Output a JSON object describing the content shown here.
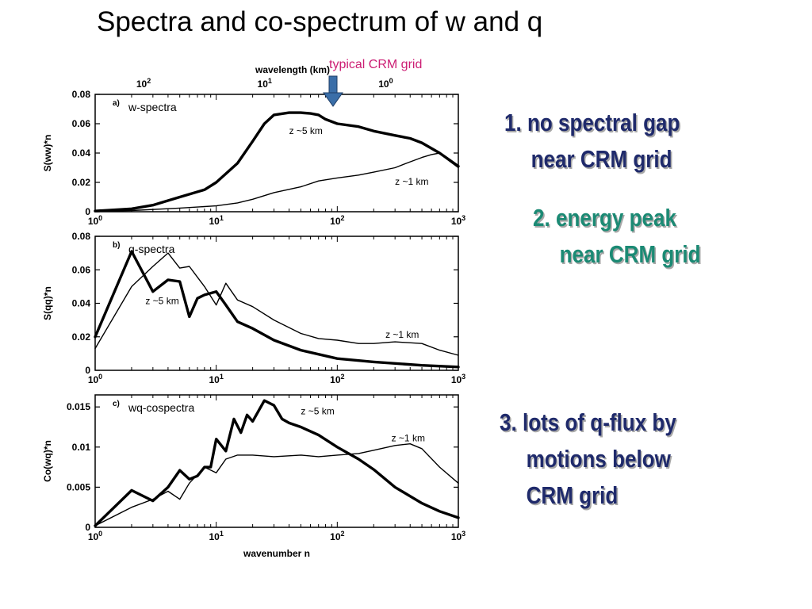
{
  "slide": {
    "title": "Spectra and co-spectrum of w and q",
    "points": [
      {
        "number": "1.",
        "lines": [
          "no spectral gap",
          "near CRM grid"
        ],
        "color": "#1f2a6b"
      },
      {
        "number": "2.",
        "lines": [
          "energy peak",
          "near CRM grid"
        ],
        "color": "#1b8a74"
      },
      {
        "number": "3.",
        "lines": [
          "lots of q-flux by",
          "motions below",
          "CRM grid"
        ],
        "color": "#1f2a6b"
      }
    ]
  },
  "figure": {
    "top_axis": {
      "label": "wavelength (km)",
      "ticks": [
        {
          "base": "10",
          "exp": "2"
        },
        {
          "base": "10",
          "exp": "1"
        },
        {
          "base": "10",
          "exp": "0"
        }
      ]
    },
    "annotation": {
      "text": "typical CRM grid",
      "color": "#cc1e74",
      "arrow_color": "#3a6ea8"
    },
    "x_label": "wavenumber n",
    "x_ticks": [
      {
        "base": "10",
        "exp": "0"
      },
      {
        "base": "10",
        "exp": "1"
      },
      {
        "base": "10",
        "exp": "2"
      },
      {
        "base": "10",
        "exp": "3"
      }
    ]
  },
  "chart_data": [
    {
      "type": "line",
      "panel": "a)",
      "title": "w-spectra",
      "ylabel": "S(ww)*n",
      "xlabel": "",
      "x_scale": "log",
      "xlim": [
        1,
        1000
      ],
      "ylim": [
        0,
        0.08
      ],
      "y_ticks": [
        "0",
        "0.02",
        "0.04",
        "0.06",
        "0.08"
      ],
      "series": [
        {
          "name": "z ~5 km",
          "style": "thick",
          "x": [
            1,
            2,
            3,
            5,
            8,
            10,
            15,
            20,
            25,
            30,
            40,
            50,
            60,
            70,
            80,
            100,
            150,
            200,
            300,
            400,
            500,
            700,
            1000
          ],
          "y": [
            0.0005,
            0.002,
            0.0045,
            0.01,
            0.015,
            0.02,
            0.033,
            0.048,
            0.06,
            0.066,
            0.0675,
            0.0675,
            0.067,
            0.066,
            0.063,
            0.06,
            0.058,
            0.055,
            0.052,
            0.05,
            0.047,
            0.04,
            0.031
          ]
        },
        {
          "name": "z ~1 km",
          "style": "thin",
          "x": [
            1,
            2,
            5,
            10,
            15,
            20,
            30,
            50,
            70,
            100,
            150,
            200,
            300,
            400,
            500,
            600,
            700,
            800,
            1000
          ],
          "y": [
            0.0002,
            0.0008,
            0.0025,
            0.004,
            0.006,
            0.0085,
            0.013,
            0.017,
            0.021,
            0.023,
            0.025,
            0.027,
            0.03,
            0.034,
            0.037,
            0.039,
            0.04,
            0.036,
            0.03
          ]
        }
      ],
      "labels": [
        {
          "text": "z ~5 km",
          "x": 40,
          "y": 0.053
        },
        {
          "text": "z ~1 km",
          "x": 300,
          "y": 0.0185
        }
      ]
    },
    {
      "type": "line",
      "panel": "b)",
      "title": "q-spectra",
      "ylabel": "S(qq)*n",
      "xlabel": "",
      "x_scale": "log",
      "xlim": [
        1,
        1000
      ],
      "ylim": [
        0,
        0.08
      ],
      "y_ticks": [
        "0",
        "0.02",
        "0.04",
        "0.06",
        "0.08"
      ],
      "series": [
        {
          "name": "z ~5 km",
          "style": "thick",
          "x": [
            1,
            2,
            3,
            4,
            5,
            6,
            7,
            8,
            10,
            12,
            15,
            20,
            30,
            50,
            100,
            200,
            500,
            1000
          ],
          "y": [
            0.02,
            0.071,
            0.047,
            0.054,
            0.053,
            0.032,
            0.043,
            0.045,
            0.047,
            0.039,
            0.029,
            0.025,
            0.018,
            0.012,
            0.007,
            0.005,
            0.003,
            0.002
          ]
        },
        {
          "name": "z ~1 km",
          "style": "thin",
          "x": [
            1,
            2,
            3,
            4,
            5,
            6,
            8,
            10,
            12,
            15,
            20,
            30,
            50,
            70,
            100,
            150,
            200,
            300,
            500,
            700,
            1000
          ],
          "y": [
            0.013,
            0.05,
            0.062,
            0.07,
            0.061,
            0.062,
            0.05,
            0.039,
            0.052,
            0.042,
            0.038,
            0.03,
            0.022,
            0.019,
            0.018,
            0.016,
            0.016,
            0.017,
            0.016,
            0.012,
            0.009
          ]
        }
      ],
      "labels": [
        {
          "text": "z ~5 km",
          "x": 2.6,
          "y": 0.0395
        },
        {
          "text": "z ~1 km",
          "x": 250,
          "y": 0.0195
        }
      ]
    },
    {
      "type": "line",
      "panel": "c)",
      "title": "wq-cospectra",
      "ylabel": "Co(wq)*n",
      "xlabel": "wavenumber n",
      "x_scale": "log",
      "xlim": [
        1,
        1000
      ],
      "ylim": [
        0,
        0.0165
      ],
      "y_ticks": [
        "0",
        "0.005",
        "0.01",
        "0.015"
      ],
      "series": [
        {
          "name": "z ~5 km",
          "style": "thick",
          "x": [
            1,
            2,
            3,
            4,
            5,
            6,
            7,
            8,
            9,
            10,
            12,
            14,
            16,
            18,
            20,
            25,
            30,
            35,
            40,
            50,
            70,
            100,
            150,
            200,
            300,
            500,
            700,
            1000
          ],
          "y": [
            0.0002,
            0.0046,
            0.0033,
            0.005,
            0.0071,
            0.006,
            0.0064,
            0.0075,
            0.0075,
            0.011,
            0.0095,
            0.0135,
            0.0118,
            0.014,
            0.0132,
            0.0158,
            0.0152,
            0.0135,
            0.013,
            0.0125,
            0.0115,
            0.01,
            0.0085,
            0.0072,
            0.005,
            0.003,
            0.002,
            0.0012
          ]
        },
        {
          "name": "z ~1 km",
          "style": "thin",
          "x": [
            1,
            2,
            3,
            4,
            5,
            6,
            8,
            10,
            12,
            15,
            20,
            30,
            50,
            70,
            100,
            150,
            200,
            300,
            400,
            500,
            700,
            1000
          ],
          "y": [
            0.0002,
            0.0025,
            0.0035,
            0.0045,
            0.0035,
            0.0055,
            0.0075,
            0.0068,
            0.0085,
            0.009,
            0.009,
            0.0088,
            0.009,
            0.0088,
            0.009,
            0.0092,
            0.0096,
            0.0102,
            0.0104,
            0.0098,
            0.0075,
            0.0055
          ]
        }
      ],
      "labels": [
        {
          "text": "z ~5 km",
          "x": 50,
          "y": 0.0141
        },
        {
          "text": "z ~1 km",
          "x": 280,
          "y": 0.0107
        }
      ]
    }
  ]
}
